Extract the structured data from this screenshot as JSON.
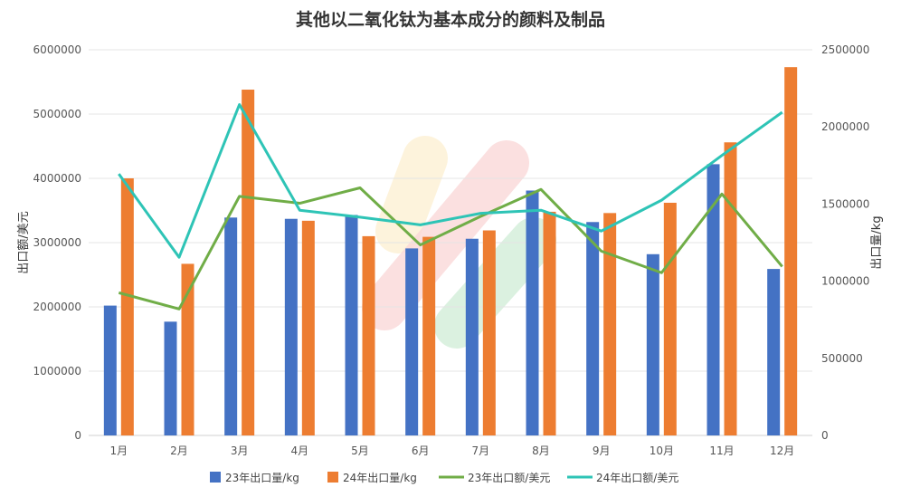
{
  "chart_data": {
    "type": "bar+line",
    "title": "其他以二氧化钛为基本成分的颜料及制品",
    "categories": [
      "1月",
      "2月",
      "3月",
      "4月",
      "5月",
      "6月",
      "7月",
      "8月",
      "9月",
      "10月",
      "11月",
      "12月"
    ],
    "ylabel_left": "出口额/美元",
    "ylabel_right": "出口量/kg",
    "ylim_left": [
      0,
      6000000
    ],
    "ylim_right": [
      0,
      2500000
    ],
    "yticks_left": [
      "0",
      "1000000",
      "2000000",
      "3000000",
      "4000000",
      "5000000",
      "6000000"
    ],
    "yticks_right": [
      "0",
      "500000",
      "1000000",
      "1500000",
      "2000000",
      "2500000"
    ],
    "grid": true,
    "legend_position": "bottom",
    "series": [
      {
        "name": "23年出口量/kg",
        "kind": "bar",
        "axis": "left",
        "color": "#4472C4",
        "values": [
          2020000,
          1770000,
          3390000,
          3370000,
          3430000,
          2910000,
          3060000,
          3810000,
          3320000,
          2820000,
          4220000,
          2590000
        ]
      },
      {
        "name": "24年出口量/kg",
        "kind": "bar",
        "axis": "left",
        "color": "#ED7D31",
        "values": [
          4000000,
          2670000,
          5380000,
          3340000,
          3100000,
          3090000,
          3190000,
          3480000,
          3460000,
          3620000,
          4560000,
          5730000
        ]
      },
      {
        "name": "23年出口额/美元",
        "kind": "line",
        "axis": "right",
        "color": "#70AD47",
        "values": [
          925000,
          820000,
          1550000,
          1505000,
          1605000,
          1235000,
          1420000,
          1595000,
          1195000,
          1055000,
          1565000,
          1095000
        ]
      },
      {
        "name": "24年出口额/美元",
        "kind": "line",
        "axis": "right",
        "color": "#2EC4B6",
        "values": [
          1695000,
          1155000,
          2145000,
          1460000,
          1415000,
          1365000,
          1440000,
          1460000,
          1325000,
          1525000,
          1815000,
          2095000
        ]
      }
    ]
  }
}
